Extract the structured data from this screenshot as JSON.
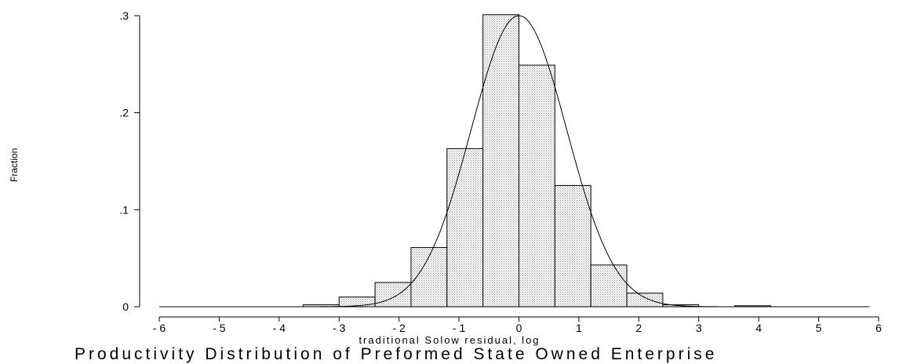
{
  "chart_data": {
    "type": "histogram",
    "ylabel": "Fraction",
    "xlabel": "traditional Solow residual, log",
    "title_partial": "Productivity Distribution of Preformed State Owned Enterprise",
    "xlim": [
      -6,
      6
    ],
    "ylim": [
      0,
      0.3
    ],
    "x_ticks": [
      -6,
      -5,
      -4,
      -3,
      -2,
      -1,
      0,
      1,
      2,
      3,
      4,
      5,
      6
    ],
    "x_tick_labels": [
      "- 6",
      "- 5",
      "- 4",
      "- 3",
      "- 2",
      "- 1",
      "0",
      "1",
      "2",
      "3",
      "4",
      "5",
      "6"
    ],
    "y_ticks": [
      0,
      0.1,
      0.2,
      0.3
    ],
    "y_tick_labels": [
      "0",
      ".1",
      ".2",
      ".3"
    ],
    "bins": [
      {
        "x0": -3.6,
        "x1": -3.0,
        "value": 0.002
      },
      {
        "x0": -3.0,
        "x1": -2.4,
        "value": 0.01
      },
      {
        "x0": -2.4,
        "x1": -1.8,
        "value": 0.025
      },
      {
        "x0": -1.8,
        "x1": -1.2,
        "value": 0.061
      },
      {
        "x0": -1.2,
        "x1": -0.6,
        "value": 0.163
      },
      {
        "x0": -0.6,
        "x1": 0.0,
        "value": 0.301
      },
      {
        "x0": 0.0,
        "x1": 0.6,
        "value": 0.249
      },
      {
        "x0": 0.6,
        "x1": 1.2,
        "value": 0.125
      },
      {
        "x0": 1.2,
        "x1": 1.8,
        "value": 0.043
      },
      {
        "x0": 1.8,
        "x1": 2.4,
        "value": 0.014
      },
      {
        "x0": 2.4,
        "x1": 3.0,
        "value": 0.002
      },
      {
        "x0": 3.6,
        "x1": 4.2,
        "value": 0.001
      }
    ],
    "normal_overlay": {
      "mean": 0.0,
      "sd": 0.8,
      "range": [
        -6,
        5.85
      ],
      "peak": 0.3
    },
    "fill": "#d8d8d8",
    "stroke": "#000000"
  }
}
